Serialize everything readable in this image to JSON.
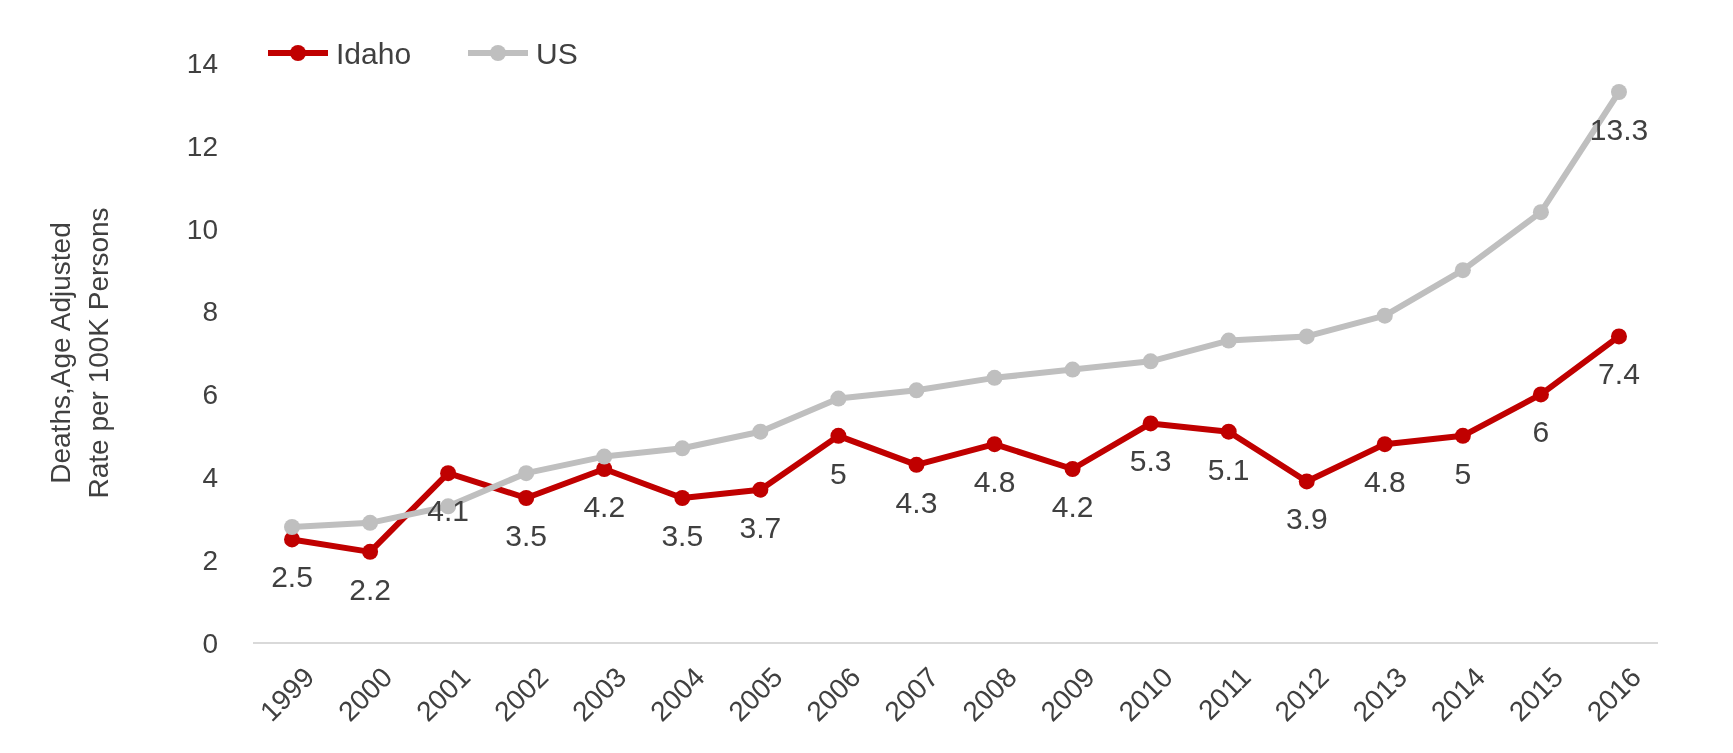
{
  "chart_data": {
    "type": "line",
    "ylabel": "Deaths,Age Adjusted\nRate per 100K Persons",
    "categories": [
      "1999",
      "2000",
      "2001",
      "2002",
      "2003",
      "2004",
      "2005",
      "2006",
      "2007",
      "2008",
      "2009",
      "2010",
      "2011",
      "2012",
      "2013",
      "2014",
      "2015",
      "2016"
    ],
    "ylim": [
      0,
      14
    ],
    "yticks": [
      0,
      2,
      4,
      6,
      8,
      10,
      12,
      14
    ],
    "grid": false,
    "legend": "top left",
    "marker": "circle",
    "line_style": "solid",
    "series": [
      {
        "name": "Idaho",
        "color": "#c00000",
        "values": [
          2.5,
          2.2,
          4.1,
          3.5,
          4.2,
          3.5,
          3.7,
          5,
          4.3,
          4.8,
          4.2,
          5.3,
          5.1,
          3.9,
          4.8,
          5,
          6,
          7.4
        ],
        "value_labels": [
          "2.5",
          "2.2",
          "4.1",
          "3.5",
          "4.2",
          "3.5",
          "3.7",
          "5",
          "4.3",
          "4.8",
          "4.2",
          "5.3",
          "5.1",
          "3.9",
          "4.8",
          "5",
          "6",
          "7.4"
        ]
      },
      {
        "name": "US",
        "color": "#bfbfbf",
        "values": [
          2.8,
          2.9,
          3.3,
          4.1,
          4.5,
          4.7,
          5.1,
          5.9,
          6.1,
          6.4,
          6.6,
          6.8,
          7.3,
          7.4,
          7.9,
          9.0,
          10.4,
          13.3
        ],
        "value_labels": [
          null,
          null,
          null,
          null,
          null,
          null,
          null,
          null,
          null,
          null,
          null,
          null,
          null,
          null,
          null,
          null,
          null,
          "13.3"
        ]
      }
    ]
  }
}
